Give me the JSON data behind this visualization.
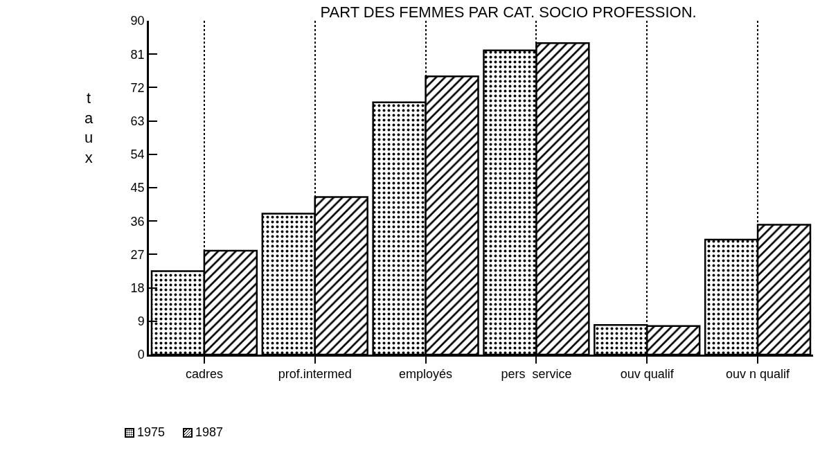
{
  "chart_data": {
    "type": "bar",
    "title": "PART DES FEMMES PAR CAT. SOCIO PROFESSION.",
    "ylabel": "taux",
    "categories": [
      "cadres",
      "prof.intermed",
      "employés",
      "pers  service",
      "ouv qualif",
      "ouv n qualif"
    ],
    "series": [
      {
        "name": "1975",
        "color": "#000000",
        "values": [
          22.5,
          38,
          68,
          82,
          8,
          31
        ]
      },
      {
        "name": "1987",
        "color": "#000000",
        "values": [
          28,
          42.5,
          75,
          84,
          7.7,
          35
        ]
      }
    ],
    "ylim": [
      0,
      90
    ],
    "yticks": [
      0,
      9,
      18,
      27,
      36,
      45,
      54,
      63,
      72,
      81,
      90
    ],
    "grid": "x",
    "legend": "bottom left"
  }
}
